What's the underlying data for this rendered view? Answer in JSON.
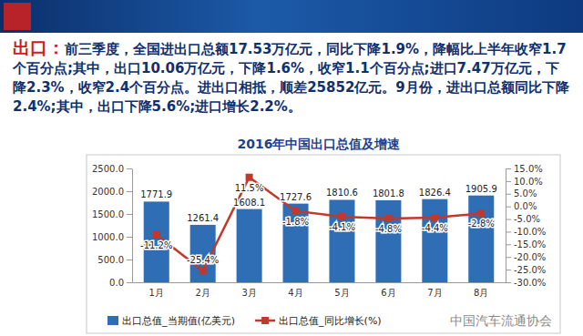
{
  "slide": {
    "heading": "出口：",
    "body": "前三季度，全国进出口总额17.53万亿元，同比下降1.9%，降幅比上半年收窄1.7个百分点;其中，出口10.06万亿元，下降1.6%，收窄1.1个百分点;进口7.47万亿元，下降2.3%，收窄2.4个百分点。进出口相抵，顺差25852亿元。9月份，进出口总额同比下降2.4%;其中，出口下降5.6%;进口增长2.2%。",
    "watermark": "中国汽车流通协会"
  },
  "chart_data": {
    "type": "bar",
    "title": "2016年中国出口总值及增速",
    "categories": [
      "1月",
      "2月",
      "3月",
      "4月",
      "5月",
      "6月",
      "7月",
      "8月"
    ],
    "series": [
      {
        "name": "出口总值_当期值(亿美元)",
        "type": "bar",
        "color": "#2f6db5",
        "values": [
          1771.9,
          1261.4,
          1608.1,
          1727.6,
          1810.6,
          1801.8,
          1826.4,
          1905.9
        ]
      },
      {
        "name": "出口总值_同比增长(%)",
        "type": "line",
        "axis": "y2",
        "color": "#c0392b",
        "marker": "square",
        "values": [
          -11.2,
          -25.4,
          11.5,
          -1.8,
          -4.1,
          -4.8,
          -4.4,
          -2.8
        ],
        "value_labels": [
          "-11.2%",
          "-25.4%",
          "11.5%",
          "-1.8%",
          "-4.1%",
          "-4.8%",
          "-4.4%",
          "-2.8%"
        ]
      }
    ],
    "ylim": [
      0,
      2500
    ],
    "yticks": [
      {
        "value": 0,
        "label": "0.0"
      },
      {
        "value": 500,
        "label": "500.0"
      },
      {
        "value": 1000,
        "label": "1000.0"
      },
      {
        "value": 1500,
        "label": "1500.0"
      },
      {
        "value": 2000,
        "label": "2000.0"
      },
      {
        "value": 2500,
        "label": "2500.0"
      }
    ],
    "y2lim": [
      -30,
      15
    ],
    "y2ticks": [
      {
        "value": -30,
        "label": "-30.0%"
      },
      {
        "value": -25,
        "label": "-25.0%"
      },
      {
        "value": -20,
        "label": "-20.0%"
      },
      {
        "value": -15,
        "label": "-15.0%"
      },
      {
        "value": -10,
        "label": "-10.0%"
      },
      {
        "value": -5,
        "label": "-5.0%"
      },
      {
        "value": 0,
        "label": "0.0%"
      },
      {
        "value": 5,
        "label": "5.0%"
      },
      {
        "value": 10,
        "label": "10.0%"
      },
      {
        "value": 15,
        "label": "15.0%"
      }
    ],
    "grid": false,
    "legend": "bottom",
    "data_labels": true
  }
}
